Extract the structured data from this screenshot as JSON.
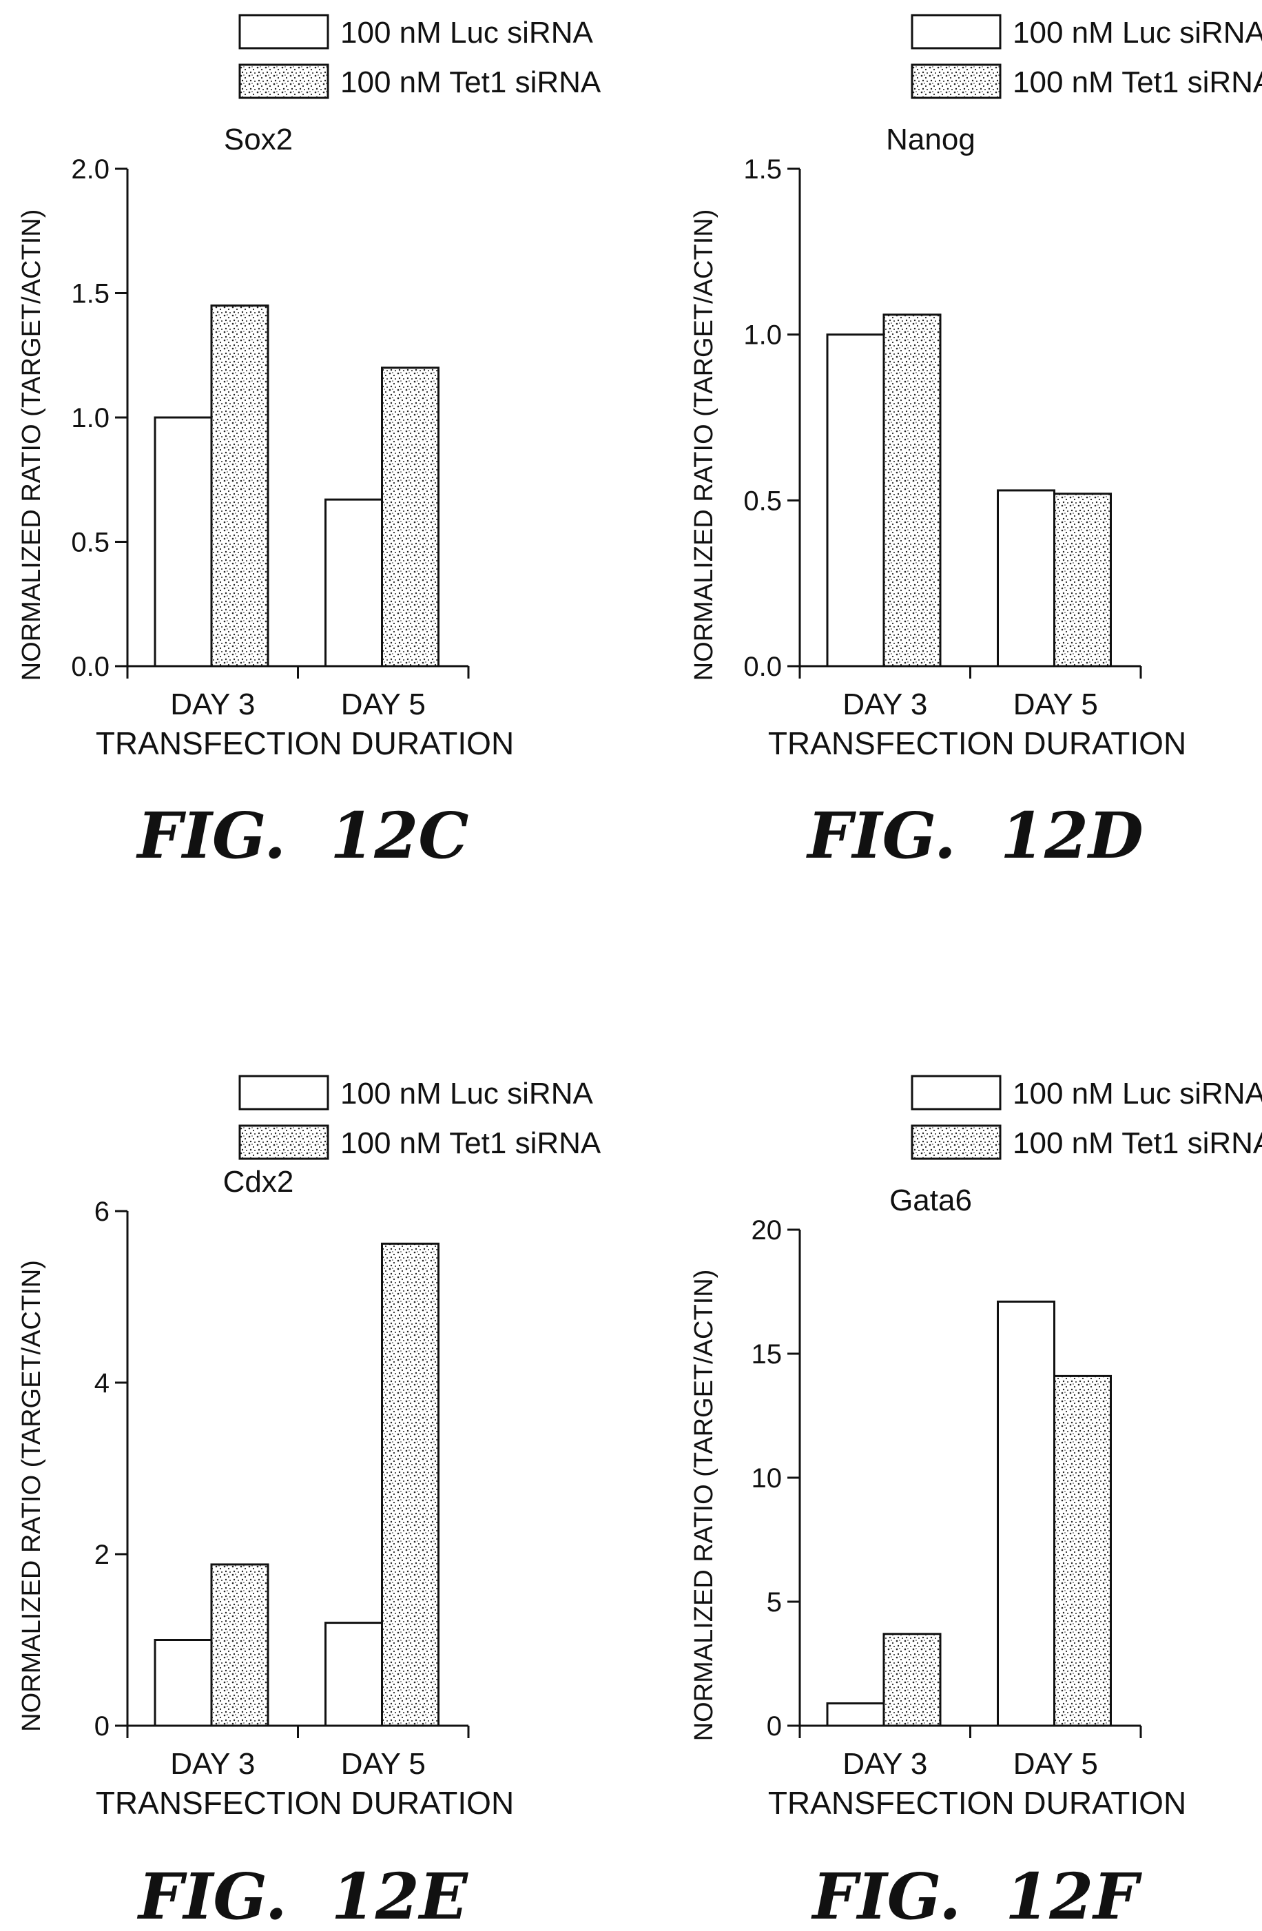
{
  "legend": {
    "luc": "100 nM Luc siRNA",
    "tet1": "100 nM Tet1 siRNA"
  },
  "chart_data": [
    {
      "type": "bar",
      "title": "Sox2",
      "figure_label": "FIG.  12C",
      "categories": [
        "DAY 3",
        "DAY 5"
      ],
      "xlabel": "TRANSFECTION DURATION",
      "ylabel": "NORMALIZED RATIO (TARGET/ACTIN)",
      "ylim": [
        0,
        2.0
      ],
      "yticks": [
        "0.0",
        "0.5",
        "1.0",
        "1.5",
        "2.0"
      ],
      "series": [
        {
          "name": "100 nM Luc siRNA",
          "values": [
            1.0,
            0.67
          ]
        },
        {
          "name": "100 nM Tet1 siRNA",
          "values": [
            1.45,
            1.2
          ]
        }
      ]
    },
    {
      "type": "bar",
      "title": "Nanog",
      "figure_label": "FIG.  12D",
      "categories": [
        "DAY 3",
        "DAY 5"
      ],
      "xlabel": "TRANSFECTION DURATION",
      "ylabel": "NORMALIZED RATIO (TARGET/ACTIN)",
      "ylim": [
        0,
        1.5
      ],
      "yticks": [
        "0.0",
        "0.5",
        "1.0",
        "1.5"
      ],
      "series": [
        {
          "name": "100 nM Luc siRNA",
          "values": [
            1.0,
            0.53
          ]
        },
        {
          "name": "100 nM Tet1 siRNA",
          "values": [
            1.06,
            0.52
          ]
        }
      ]
    },
    {
      "type": "bar",
      "title": "Cdx2",
      "figure_label": "FIG.  12E",
      "categories": [
        "DAY 3",
        "DAY 5"
      ],
      "xlabel": "TRANSFECTION DURATION",
      "ylabel": "NORMALIZED RATIO (TARGET/ACTIN)",
      "ylim": [
        0,
        6
      ],
      "yticks": [
        "0",
        "2",
        "4",
        "6"
      ],
      "series": [
        {
          "name": "100 nM Luc siRNA",
          "values": [
            1.0,
            1.2
          ]
        },
        {
          "name": "100 nM Tet1 siRNA",
          "values": [
            1.88,
            5.62
          ]
        }
      ]
    },
    {
      "type": "bar",
      "title": "Gata6",
      "figure_label": "FIG.  12F",
      "categories": [
        "DAY 3",
        "DAY 5"
      ],
      "xlabel": "TRANSFECTION DURATION",
      "ylabel": "NORMALIZED RATIO (TARGET/ACTIN)",
      "ylim": [
        0,
        20
      ],
      "yticks": [
        "0",
        "5",
        "10",
        "15",
        "20"
      ],
      "series": [
        {
          "name": "100 nM Luc siRNA",
          "values": [
            0.9,
            17.1
          ]
        },
        {
          "name": "100 nM Tet1 siRNA",
          "values": [
            3.7,
            14.1
          ]
        }
      ]
    }
  ]
}
